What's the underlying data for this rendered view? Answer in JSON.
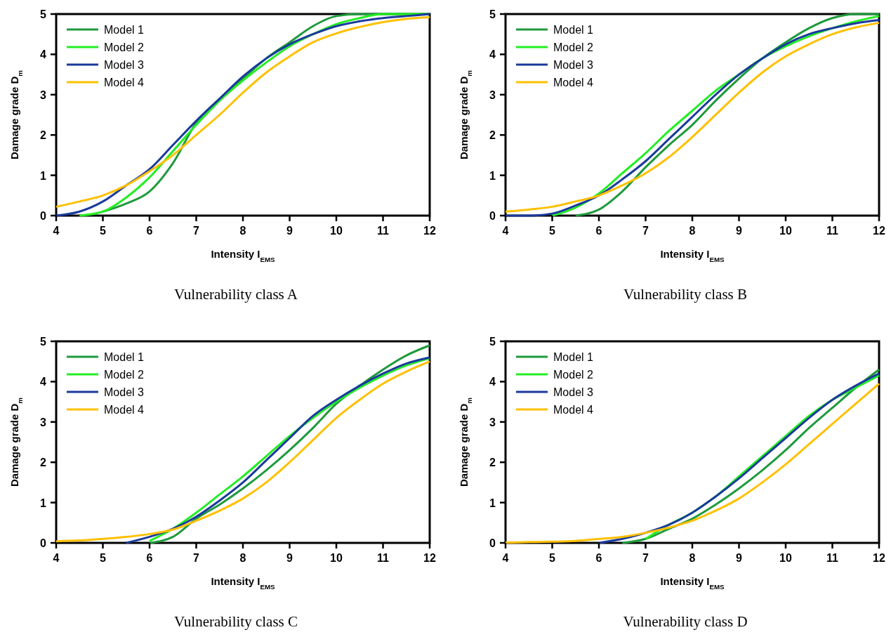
{
  "chart_data": [
    {
      "type": "line",
      "title": "Vulnerability class A",
      "xlabel": "Intensity I$_{EMS}$",
      "ylabel": "Damage grade D$_{m}$",
      "x": [
        4,
        4.5,
        5,
        5.5,
        6,
        6.5,
        7,
        7.5,
        8,
        8.5,
        9,
        9.5,
        10,
        10.5,
        11,
        11.5,
        12
      ],
      "xlim": [
        4,
        12
      ],
      "ylim": [
        0,
        5
      ],
      "xticks": [
        4,
        5,
        6,
        7,
        8,
        9,
        10,
        11,
        12
      ],
      "yticks": [
        0,
        1,
        2,
        3,
        4,
        5
      ],
      "legend": "top left",
      "series": [
        {
          "name": "Model 1",
          "color": "#1e9a3c",
          "values": [
            null,
            null,
            0.1,
            0.3,
            0.6,
            1.3,
            2.3,
            2.9,
            3.4,
            3.9,
            4.3,
            4.7,
            4.95,
            5,
            5,
            5,
            5
          ]
        },
        {
          "name": "Model 2",
          "color": "#22ee22",
          "values": [
            null,
            0,
            0.1,
            0.45,
            0.95,
            1.6,
            2.25,
            2.85,
            3.35,
            3.8,
            4.2,
            4.5,
            4.75,
            4.9,
            5,
            5,
            5
          ]
        },
        {
          "name": "Model 3",
          "color": "#1a3a9c",
          "values": [
            0,
            0.1,
            0.35,
            0.75,
            1.15,
            1.75,
            2.35,
            2.9,
            3.45,
            3.9,
            4.25,
            4.5,
            4.7,
            4.82,
            4.9,
            4.95,
            5
          ]
        },
        {
          "name": "Model 4",
          "color": "#ffc000",
          "values": [
            0.22,
            0.35,
            0.5,
            0.75,
            1.1,
            1.5,
            2,
            2.5,
            3.05,
            3.55,
            3.95,
            4.3,
            4.52,
            4.68,
            4.8,
            4.88,
            4.92
          ]
        }
      ]
    },
    {
      "type": "line",
      "title": "Vulnerability class B",
      "xlabel": "Intensity I$_{EMS}$",
      "ylabel": "Damage grade D$_{m}$",
      "x": [
        4,
        4.5,
        5,
        5.5,
        6,
        6.5,
        7,
        7.5,
        8,
        8.5,
        9,
        9.5,
        10,
        10.5,
        11,
        11.5,
        12
      ],
      "xlim": [
        4,
        12
      ],
      "ylim": [
        0,
        5
      ],
      "xticks": [
        4,
        5,
        6,
        7,
        8,
        9,
        10,
        11,
        12
      ],
      "yticks": [
        0,
        1,
        2,
        3,
        4,
        5
      ],
      "legend": "top left",
      "series": [
        {
          "name": "Model 1",
          "color": "#1e9a3c",
          "values": [
            null,
            null,
            null,
            0,
            0.15,
            0.6,
            1.2,
            1.75,
            2.25,
            2.85,
            3.4,
            3.9,
            4.3,
            4.65,
            4.9,
            5,
            5
          ]
        },
        {
          "name": "Model 2",
          "color": "#22ee22",
          "values": [
            null,
            null,
            0,
            0.2,
            0.55,
            1.05,
            1.55,
            2.1,
            2.6,
            3.1,
            3.5,
            3.9,
            4.2,
            4.45,
            4.65,
            4.82,
            4.95
          ]
        },
        {
          "name": "Model 3",
          "color": "#1a3a9c",
          "values": [
            0,
            0,
            0.05,
            0.25,
            0.5,
            0.9,
            1.35,
            1.9,
            2.45,
            3,
            3.5,
            3.9,
            4.25,
            4.5,
            4.65,
            4.77,
            4.85
          ]
        },
        {
          "name": "Model 4",
          "color": "#ffc000",
          "values": [
            0.1,
            0.15,
            0.22,
            0.35,
            0.5,
            0.75,
            1.05,
            1.45,
            1.95,
            2.5,
            3.05,
            3.55,
            3.95,
            4.25,
            4.5,
            4.67,
            4.78
          ]
        }
      ]
    },
    {
      "type": "line",
      "title": "Vulnerability class C",
      "xlabel": "Intensity I$_{EMS}$",
      "ylabel": "Damage grade D$_{m}$",
      "x": [
        4,
        4.5,
        5,
        5.5,
        6,
        6.5,
        7,
        7.5,
        8,
        8.5,
        9,
        9.5,
        10,
        10.5,
        11,
        11.5,
        12
      ],
      "xlim": [
        4,
        12
      ],
      "ylim": [
        0,
        5
      ],
      "xticks": [
        4,
        5,
        6,
        7,
        8,
        9,
        10,
        11,
        12
      ],
      "yticks": [
        0,
        1,
        2,
        3,
        4,
        5
      ],
      "legend": "top left",
      "series": [
        {
          "name": "Model 1",
          "color": "#1e9a3c",
          "values": [
            null,
            null,
            null,
            null,
            0,
            0.15,
            0.6,
            0.95,
            1.35,
            1.8,
            2.3,
            2.85,
            3.45,
            3.9,
            4.3,
            4.65,
            4.9
          ]
        },
        {
          "name": "Model 2",
          "color": "#22ee22",
          "values": [
            null,
            null,
            null,
            null,
            0.05,
            0.35,
            0.75,
            1.2,
            1.65,
            2.15,
            2.65,
            3.1,
            3.5,
            3.85,
            4.15,
            4.4,
            4.58
          ]
        },
        {
          "name": "Model 3",
          "color": "#1a3a9c",
          "values": [
            null,
            null,
            null,
            0,
            0.15,
            0.35,
            0.65,
            1.05,
            1.5,
            2.05,
            2.6,
            3.15,
            3.55,
            3.9,
            4.2,
            4.45,
            4.6
          ]
        },
        {
          "name": "Model 4",
          "color": "#ffc000",
          "values": [
            0.04,
            0.06,
            0.1,
            0.15,
            0.22,
            0.33,
            0.55,
            0.8,
            1.1,
            1.5,
            2,
            2.55,
            3.1,
            3.55,
            3.95,
            4.25,
            4.5
          ]
        }
      ]
    },
    {
      "type": "line",
      "title": "Vulnerability class D",
      "xlabel": "Intensity I$_{EMS}$",
      "ylabel": "Damage grade D$_{m}$",
      "x": [
        4,
        4.5,
        5,
        5.5,
        6,
        6.5,
        7,
        7.5,
        8,
        8.5,
        9,
        9.5,
        10,
        10.5,
        11,
        11.5,
        12
      ],
      "xlim": [
        4,
        12
      ],
      "ylim": [
        0,
        5
      ],
      "xticks": [
        4,
        5,
        6,
        7,
        8,
        9,
        10,
        11,
        12
      ],
      "yticks": [
        0,
        1,
        2,
        3,
        4,
        5
      ],
      "legend": "top left",
      "series": [
        {
          "name": "Model 1",
          "color": "#1e9a3c",
          "values": [
            null,
            null,
            null,
            null,
            null,
            0,
            0.1,
            0.35,
            0.6,
            0.95,
            1.35,
            1.8,
            2.3,
            2.85,
            3.35,
            3.85,
            4.3
          ]
        },
        {
          "name": "Model 2",
          "color": "#22ee22",
          "values": [
            null,
            null,
            null,
            null,
            null,
            null,
            0.1,
            0.45,
            0.75,
            1.15,
            1.65,
            2.15,
            2.65,
            3.15,
            3.55,
            3.85,
            4.15
          ]
        },
        {
          "name": "Model 3",
          "color": "#1a3a9c",
          "values": [
            null,
            null,
            null,
            null,
            0,
            0.1,
            0.25,
            0.45,
            0.75,
            1.15,
            1.6,
            2.1,
            2.6,
            3.1,
            3.55,
            3.9,
            4.2
          ]
        },
        {
          "name": "Model 4",
          "color": "#ffc000",
          "values": [
            0.01,
            0.02,
            0.03,
            0.05,
            0.1,
            0.15,
            0.25,
            0.38,
            0.55,
            0.8,
            1.1,
            1.5,
            1.95,
            2.45,
            2.95,
            3.45,
            3.95
          ]
        }
      ]
    }
  ]
}
